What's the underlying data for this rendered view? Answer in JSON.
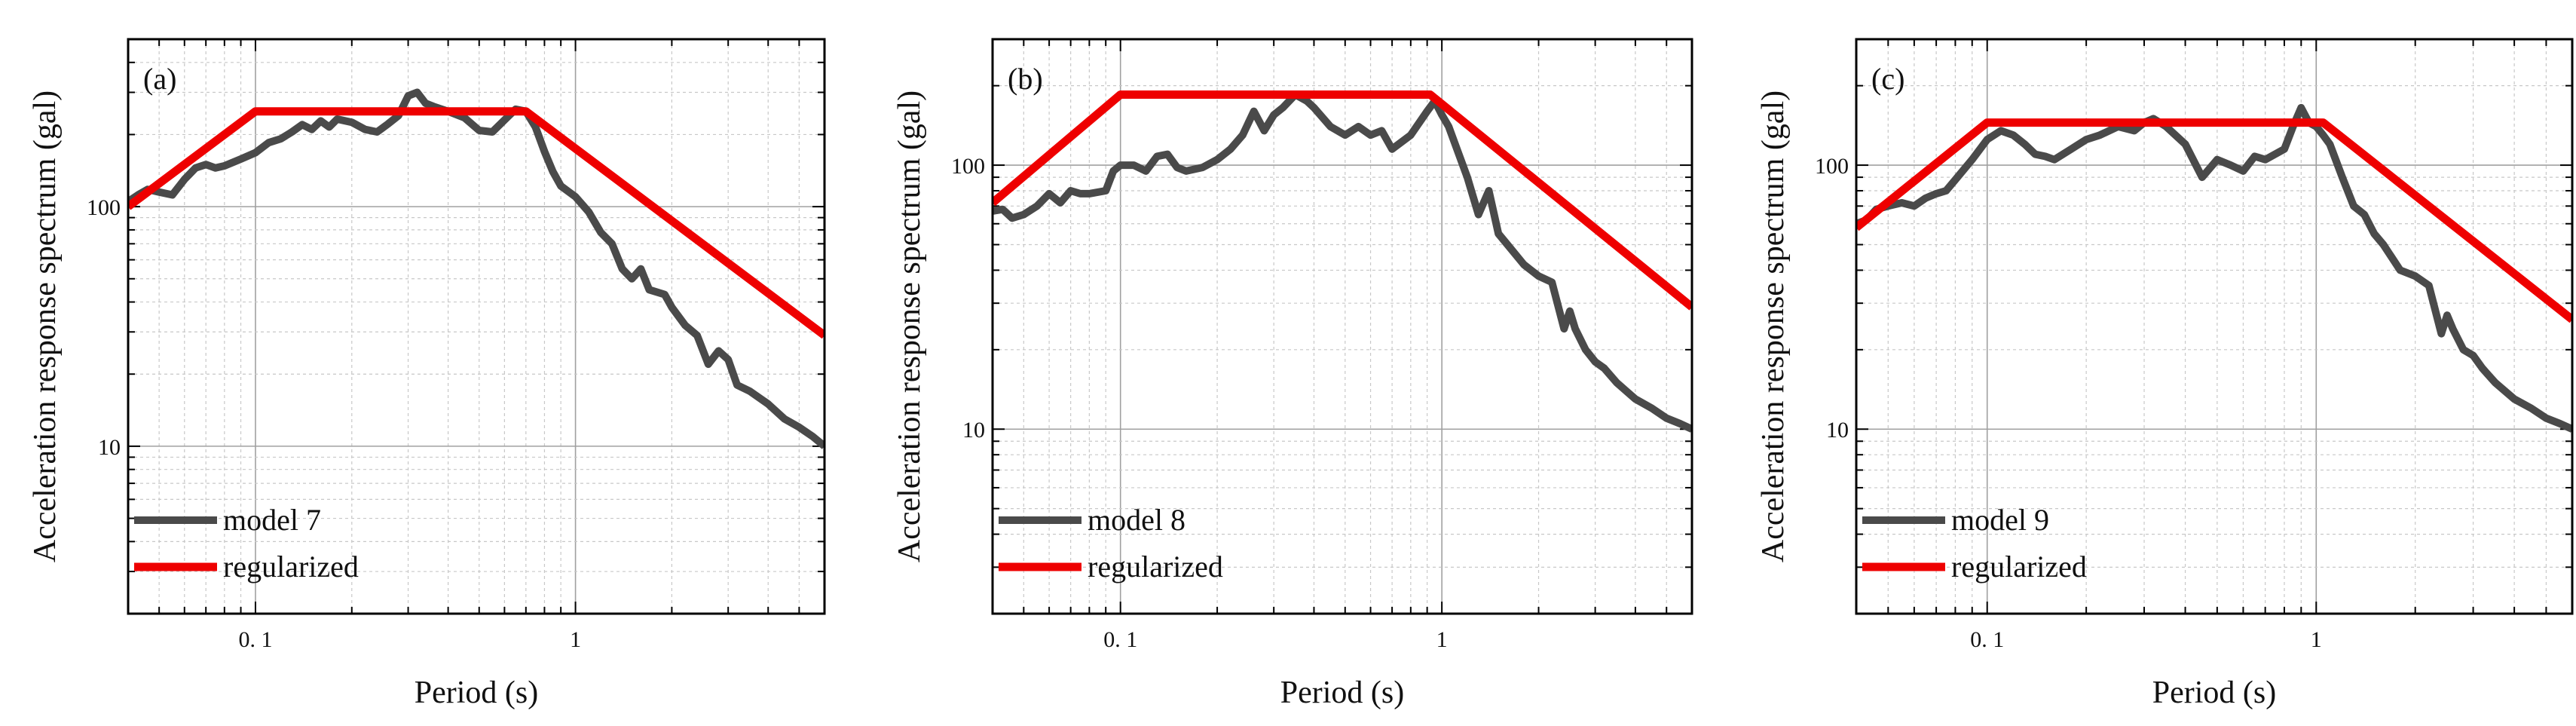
{
  "colors": {
    "model": "#4a4a4a",
    "regularized": "#ee0000",
    "grid_major": "#a0a0a0",
    "grid_minor": "#c8c8c8",
    "axis": "#000000"
  },
  "chart_data": [
    {
      "type": "line",
      "panel_label": "(a)",
      "xlabel": "Period (s)",
      "ylabel": "Acceleration response spectrum (gal)",
      "xscale": "log",
      "yscale": "log",
      "xlim": [
        0.04,
        6
      ],
      "ylim": [
        2,
        500
      ],
      "grid": true,
      "legend_position": "lower-left",
      "x_ticks": [
        {
          "value": 0.1,
          "label": "0. 1"
        },
        {
          "value": 1,
          "label": "1"
        }
      ],
      "y_ticks": [
        {
          "value": 10,
          "label": "10"
        },
        {
          "value": 100,
          "label": "100"
        }
      ],
      "series": [
        {
          "name": "model 7",
          "color_key": "model",
          "points": [
            [
              0.04,
              105
            ],
            [
              0.043,
              112
            ],
            [
              0.046,
              118
            ],
            [
              0.05,
              115
            ],
            [
              0.055,
              112
            ],
            [
              0.06,
              130
            ],
            [
              0.065,
              145
            ],
            [
              0.07,
              150
            ],
            [
              0.075,
              145
            ],
            [
              0.08,
              148
            ],
            [
              0.09,
              158
            ],
            [
              0.1,
              168
            ],
            [
              0.11,
              185
            ],
            [
              0.12,
              192
            ],
            [
              0.13,
              205
            ],
            [
              0.14,
              220
            ],
            [
              0.15,
              210
            ],
            [
              0.16,
              228
            ],
            [
              0.17,
              215
            ],
            [
              0.18,
              232
            ],
            [
              0.2,
              225
            ],
            [
              0.22,
              210
            ],
            [
              0.24,
              205
            ],
            [
              0.26,
              222
            ],
            [
              0.28,
              240
            ],
            [
              0.3,
              290
            ],
            [
              0.32,
              300
            ],
            [
              0.34,
              270
            ],
            [
              0.36,
              262
            ],
            [
              0.4,
              250
            ],
            [
              0.45,
              235
            ],
            [
              0.5,
              208
            ],
            [
              0.55,
              205
            ],
            [
              0.6,
              230
            ],
            [
              0.65,
              255
            ],
            [
              0.7,
              250
            ],
            [
              0.75,
              215
            ],
            [
              0.8,
              170
            ],
            [
              0.85,
              140
            ],
            [
              0.9,
              122
            ],
            [
              1.0,
              110
            ],
            [
              1.1,
              95
            ],
            [
              1.2,
              78
            ],
            [
              1.3,
              70
            ],
            [
              1.4,
              55
            ],
            [
              1.5,
              50
            ],
            [
              1.6,
              55
            ],
            [
              1.7,
              45
            ],
            [
              1.9,
              43
            ],
            [
              2.0,
              38
            ],
            [
              2.2,
              32
            ],
            [
              2.4,
              29
            ],
            [
              2.6,
              22
            ],
            [
              2.8,
              25
            ],
            [
              3.0,
              23
            ],
            [
              3.2,
              18
            ],
            [
              3.5,
              17
            ],
            [
              4.0,
              15
            ],
            [
              4.5,
              13
            ],
            [
              5.0,
              12
            ],
            [
              5.5,
              11
            ],
            [
              6.0,
              10
            ]
          ]
        },
        {
          "name": "regularized",
          "color_key": "regularized",
          "points": [
            [
              0.04,
              100
            ],
            [
              0.1,
              250
            ],
            [
              0.7,
              250
            ],
            [
              6.0,
              29
            ]
          ]
        }
      ]
    },
    {
      "type": "line",
      "panel_label": "(b)",
      "xlabel": "Period (s)",
      "ylabel": "Acceleration response spectrum (gal)",
      "xscale": "log",
      "yscale": "log",
      "xlim": [
        0.04,
        6
      ],
      "ylim": [
        2,
        300
      ],
      "grid": true,
      "legend_position": "lower-left",
      "x_ticks": [
        {
          "value": 0.1,
          "label": "0. 1"
        },
        {
          "value": 1,
          "label": "1"
        }
      ],
      "y_ticks": [
        {
          "value": 10,
          "label": "10"
        },
        {
          "value": 100,
          "label": "100"
        }
      ],
      "series": [
        {
          "name": "model 8",
          "color_key": "model",
          "points": [
            [
              0.04,
              67
            ],
            [
              0.043,
              68
            ],
            [
              0.046,
              63
            ],
            [
              0.05,
              65
            ],
            [
              0.055,
              70
            ],
            [
              0.06,
              78
            ],
            [
              0.065,
              72
            ],
            [
              0.07,
              80
            ],
            [
              0.075,
              78
            ],
            [
              0.08,
              78
            ],
            [
              0.09,
              80
            ],
            [
              0.095,
              95
            ],
            [
              0.1,
              100
            ],
            [
              0.11,
              100
            ],
            [
              0.12,
              95
            ],
            [
              0.13,
              108
            ],
            [
              0.14,
              110
            ],
            [
              0.15,
              98
            ],
            [
              0.16,
              95
            ],
            [
              0.18,
              98
            ],
            [
              0.2,
              105
            ],
            [
              0.22,
              115
            ],
            [
              0.24,
              130
            ],
            [
              0.26,
              160
            ],
            [
              0.28,
              135
            ],
            [
              0.3,
              155
            ],
            [
              0.32,
              165
            ],
            [
              0.35,
              185
            ],
            [
              0.38,
              175
            ],
            [
              0.4,
              165
            ],
            [
              0.45,
              140
            ],
            [
              0.5,
              130
            ],
            [
              0.55,
              140
            ],
            [
              0.6,
              130
            ],
            [
              0.65,
              135
            ],
            [
              0.7,
              115
            ],
            [
              0.8,
              130
            ],
            [
              0.9,
              160
            ],
            [
              0.95,
              175
            ],
            [
              1.0,
              155
            ],
            [
              1.05,
              140
            ],
            [
              1.1,
              120
            ],
            [
              1.2,
              90
            ],
            [
              1.3,
              65
            ],
            [
              1.4,
              80
            ],
            [
              1.5,
              55
            ],
            [
              1.6,
              50
            ],
            [
              1.8,
              42
            ],
            [
              2.0,
              38
            ],
            [
              2.2,
              36
            ],
            [
              2.4,
              24
            ],
            [
              2.5,
              28
            ],
            [
              2.6,
              24
            ],
            [
              2.8,
              20
            ],
            [
              3.0,
              18
            ],
            [
              3.2,
              17
            ],
            [
              3.5,
              15
            ],
            [
              4.0,
              13
            ],
            [
              4.5,
              12
            ],
            [
              5.0,
              11
            ],
            [
              5.5,
              10.5
            ],
            [
              6.0,
              10
            ]
          ]
        },
        {
          "name": "regularized",
          "color_key": "regularized",
          "points": [
            [
              0.04,
              72
            ],
            [
              0.1,
              185
            ],
            [
              0.92,
              185
            ],
            [
              6.0,
              29
            ]
          ]
        }
      ]
    },
    {
      "type": "line",
      "panel_label": "(c)",
      "xlabel": "Period (s)",
      "ylabel": "Acceleration response spectrum (gal)",
      "xscale": "log",
      "yscale": "log",
      "xlim": [
        0.04,
        6
      ],
      "ylim": [
        2,
        300
      ],
      "grid": true,
      "legend_position": "lower-left",
      "x_ticks": [
        {
          "value": 0.1,
          "label": "0. 1"
        },
        {
          "value": 1,
          "label": "1"
        }
      ],
      "y_ticks": [
        {
          "value": 10,
          "label": "10"
        },
        {
          "value": 100,
          "label": "100"
        }
      ],
      "series": [
        {
          "name": "model 9",
          "color_key": "model",
          "points": [
            [
              0.04,
              60
            ],
            [
              0.043,
              62
            ],
            [
              0.046,
              68
            ],
            [
              0.05,
              70
            ],
            [
              0.055,
              72
            ],
            [
              0.06,
              70
            ],
            [
              0.065,
              75
            ],
            [
              0.07,
              78
            ],
            [
              0.075,
              80
            ],
            [
              0.08,
              88
            ],
            [
              0.09,
              105
            ],
            [
              0.1,
              125
            ],
            [
              0.11,
              135
            ],
            [
              0.12,
              130
            ],
            [
              0.13,
              120
            ],
            [
              0.14,
              110
            ],
            [
              0.15,
              108
            ],
            [
              0.16,
              105
            ],
            [
              0.18,
              115
            ],
            [
              0.2,
              125
            ],
            [
              0.22,
              130
            ],
            [
              0.25,
              140
            ],
            [
              0.28,
              135
            ],
            [
              0.3,
              145
            ],
            [
              0.32,
              150
            ],
            [
              0.35,
              140
            ],
            [
              0.4,
              120
            ],
            [
              0.45,
              90
            ],
            [
              0.5,
              105
            ],
            [
              0.55,
              100
            ],
            [
              0.6,
              95
            ],
            [
              0.65,
              108
            ],
            [
              0.7,
              105
            ],
            [
              0.8,
              115
            ],
            [
              0.85,
              140
            ],
            [
              0.9,
              165
            ],
            [
              0.95,
              145
            ],
            [
              1.0,
              140
            ],
            [
              1.05,
              130
            ],
            [
              1.1,
              120
            ],
            [
              1.2,
              90
            ],
            [
              1.3,
              70
            ],
            [
              1.4,
              65
            ],
            [
              1.5,
              55
            ],
            [
              1.6,
              50
            ],
            [
              1.8,
              40
            ],
            [
              2.0,
              38
            ],
            [
              2.2,
              35
            ],
            [
              2.4,
              23
            ],
            [
              2.5,
              27
            ],
            [
              2.6,
              24
            ],
            [
              2.8,
              20
            ],
            [
              3.0,
              19
            ],
            [
              3.2,
              17
            ],
            [
              3.5,
              15
            ],
            [
              4.0,
              13
            ],
            [
              4.5,
              12
            ],
            [
              5.0,
              11
            ],
            [
              5.5,
              10.5
            ],
            [
              6.0,
              10
            ]
          ]
        },
        {
          "name": "regularized",
          "color_key": "regularized",
          "points": [
            [
              0.04,
              58
            ],
            [
              0.1,
              145
            ],
            [
              1.05,
              145
            ],
            [
              6.0,
              26
            ]
          ]
        }
      ]
    }
  ]
}
